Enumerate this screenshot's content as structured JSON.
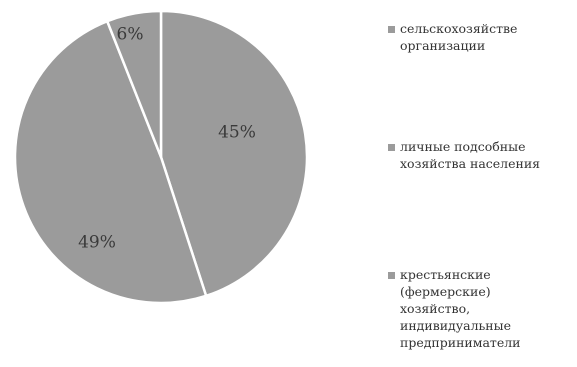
{
  "chart_data": {
    "type": "pie",
    "categories": [
      "сельскохозяйстве нные организации",
      "личные подсобные хозяйства населения",
      "крестьянские (фермерские) хозяйства, индивидуальные предприниматели"
    ],
    "values": [
      45,
      49,
      6
    ],
    "value_labels": [
      "45%",
      "49%",
      "6%"
    ],
    "legend_labels": [
      "сельскохозяйстве\nорганизации",
      "личные подсобные\nхозяйства населения",
      "крестьянские\n(фермерские)\nхозяйство,\nиндивидуальные\nпредприниматели"
    ],
    "colors": [
      "#9b9b9b",
      "#9b9b9b",
      "#9b9b9b"
    ],
    "legend_placement": "right",
    "start_angle_deg": 0,
    "direction": "clockwise"
  }
}
